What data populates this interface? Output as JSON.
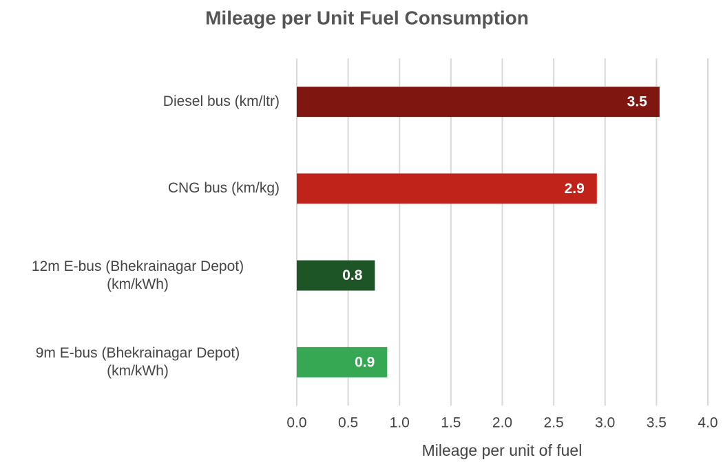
{
  "chart_data": {
    "type": "bar",
    "orientation": "horizontal",
    "title": "Mileage per Unit Fuel Consumption",
    "x_label": "Mileage per unit of fuel",
    "categories": [
      "Diesel bus (km/ltr)",
      "CNG bus (km/kg)",
      "12m E-bus (Bhekrainagar Depot)\n(km/kWh)",
      "9m E-bus (Bhekrainagar Depot)\n(km/kWh)"
    ],
    "values": [
      3.53,
      2.92,
      0.76,
      0.88
    ],
    "value_labels": [
      "3.5",
      "2.9",
      "0.8",
      "0.9"
    ],
    "colors": [
      "#7f1710",
      "#c0231a",
      "#1d5527",
      "#36a853"
    ],
    "xlim": [
      0,
      4
    ],
    "xticks": [
      {
        "value": 0,
        "label": "0.0"
      },
      0.5,
      {
        "value": 1,
        "label": "1.0"
      },
      1.5,
      {
        "value": 2,
        "label": "2.0"
      },
      2.5,
      {
        "value": 3,
        "label": "3.0"
      },
      3.5,
      {
        "value": 4,
        "label": "4.0"
      }
    ],
    "grid": true
  }
}
